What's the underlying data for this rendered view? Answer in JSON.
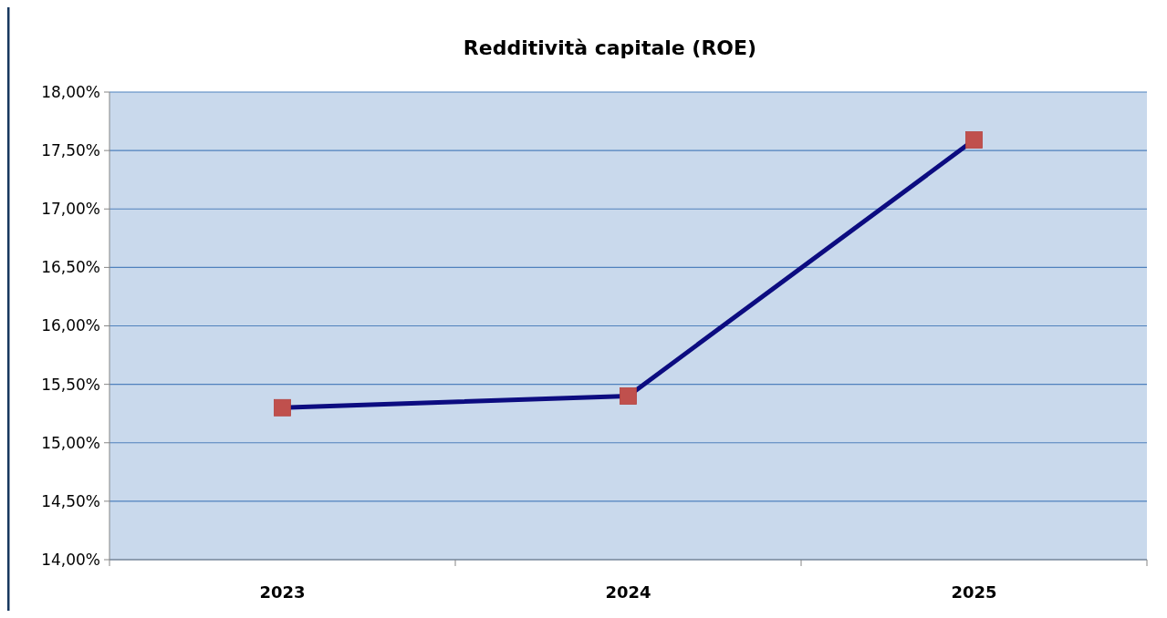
{
  "chart_data": {
    "type": "line",
    "title": "Redditività capitale (ROE)",
    "categories": [
      "2023",
      "2024",
      "2025"
    ],
    "series": [
      {
        "color": "#0c0c80",
        "colors": [
          "#c0504d",
          "#c0504d",
          "#c0504d"
        ],
        "values": [
          15.3,
          15.4,
          17.59
        ]
      }
    ],
    "ylim": [
      14,
      18
    ],
    "yticks": [
      {
        "value": 14,
        "label": "14,00%"
      },
      {
        "value": 14.5,
        "label": "14,50%"
      },
      {
        "value": 15,
        "label": "15,00%"
      },
      {
        "value": 15.5,
        "label": "15,50%"
      },
      {
        "value": 16,
        "label": "16,00%"
      },
      {
        "value": 16.5,
        "label": "16,50%"
      },
      {
        "value": 17,
        "label": "17,00%"
      },
      {
        "value": 17.5,
        "label": "17,50%"
      },
      {
        "value": 18,
        "label": "18,00%"
      }
    ],
    "grid": "y",
    "marker": "square",
    "line_style": "solid"
  }
}
